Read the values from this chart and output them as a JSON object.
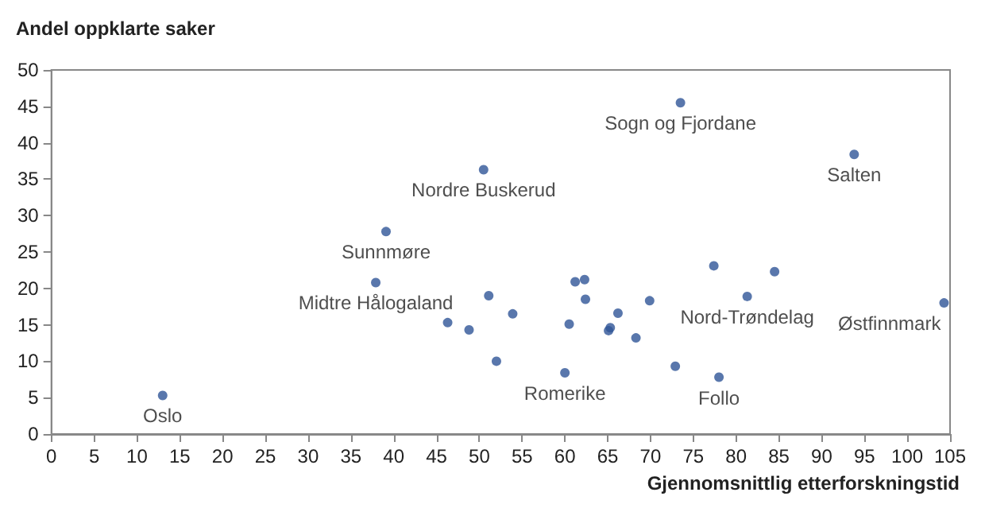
{
  "chart_data": {
    "type": "scatter",
    "xlabel": "Gjennomsnittlig etterforskningstid",
    "ylabel": "Andel oppklarte saker",
    "series": [
      {
        "color": "#2f5597",
        "x": [
          13,
          37.9,
          39.1,
          50.5,
          73.5,
          93.8,
          104.3,
          81.3,
          78,
          60,
          46.3,
          48.8,
          51.1,
          52,
          53.9,
          60.5,
          61.2,
          62.3,
          62.4,
          65.1,
          65.3,
          66.2,
          68.3,
          69.9,
          72.9,
          77.4,
          84.5
        ],
        "values": [
          5.3,
          20.8,
          27.8,
          36.3,
          45.5,
          38.4,
          18,
          18.9,
          7.8,
          8.4,
          15.3,
          14.3,
          19,
          10,
          16.5,
          15.1,
          20.9,
          21.2,
          18.5,
          14.2,
          14.6,
          16.6,
          13.2,
          18.3,
          9.3,
          23.1,
          22.3
        ]
      }
    ],
    "annotations": [
      {
        "text": "Oslo",
        "x": 13,
        "y": 5.3
      },
      {
        "text": "Midtre Hålogaland",
        "x": 37.9,
        "y": 20.8
      },
      {
        "text": "Sunnmøre",
        "x": 39.1,
        "y": 27.8
      },
      {
        "text": "Nordre Buskerud",
        "x": 50.5,
        "y": 36.3
      },
      {
        "text": "Sogn og Fjordane",
        "x": 73.5,
        "y": 45.5
      },
      {
        "text": "Salten",
        "x": 93.8,
        "y": 38.4
      },
      {
        "text": "Østfinnmark",
        "x": 104.3,
        "y": 18
      },
      {
        "text": "Nord-Trøndelag",
        "x": 81.3,
        "y": 18.9
      },
      {
        "text": "Follo",
        "x": 78,
        "y": 7.8
      },
      {
        "text": "Romerike",
        "x": 60,
        "y": 8.4
      }
    ],
    "xlim": [
      0,
      105
    ],
    "xticks": [
      0,
      5,
      10,
      15,
      20,
      25,
      30,
      35,
      40,
      45,
      50,
      55,
      60,
      65,
      70,
      75,
      80,
      85,
      90,
      95,
      100,
      105
    ],
    "ylim": [
      0,
      50
    ],
    "yticks": [
      0,
      5,
      10,
      15,
      20,
      25,
      30,
      35,
      40,
      45,
      50
    ],
    "marker": "circle"
  }
}
